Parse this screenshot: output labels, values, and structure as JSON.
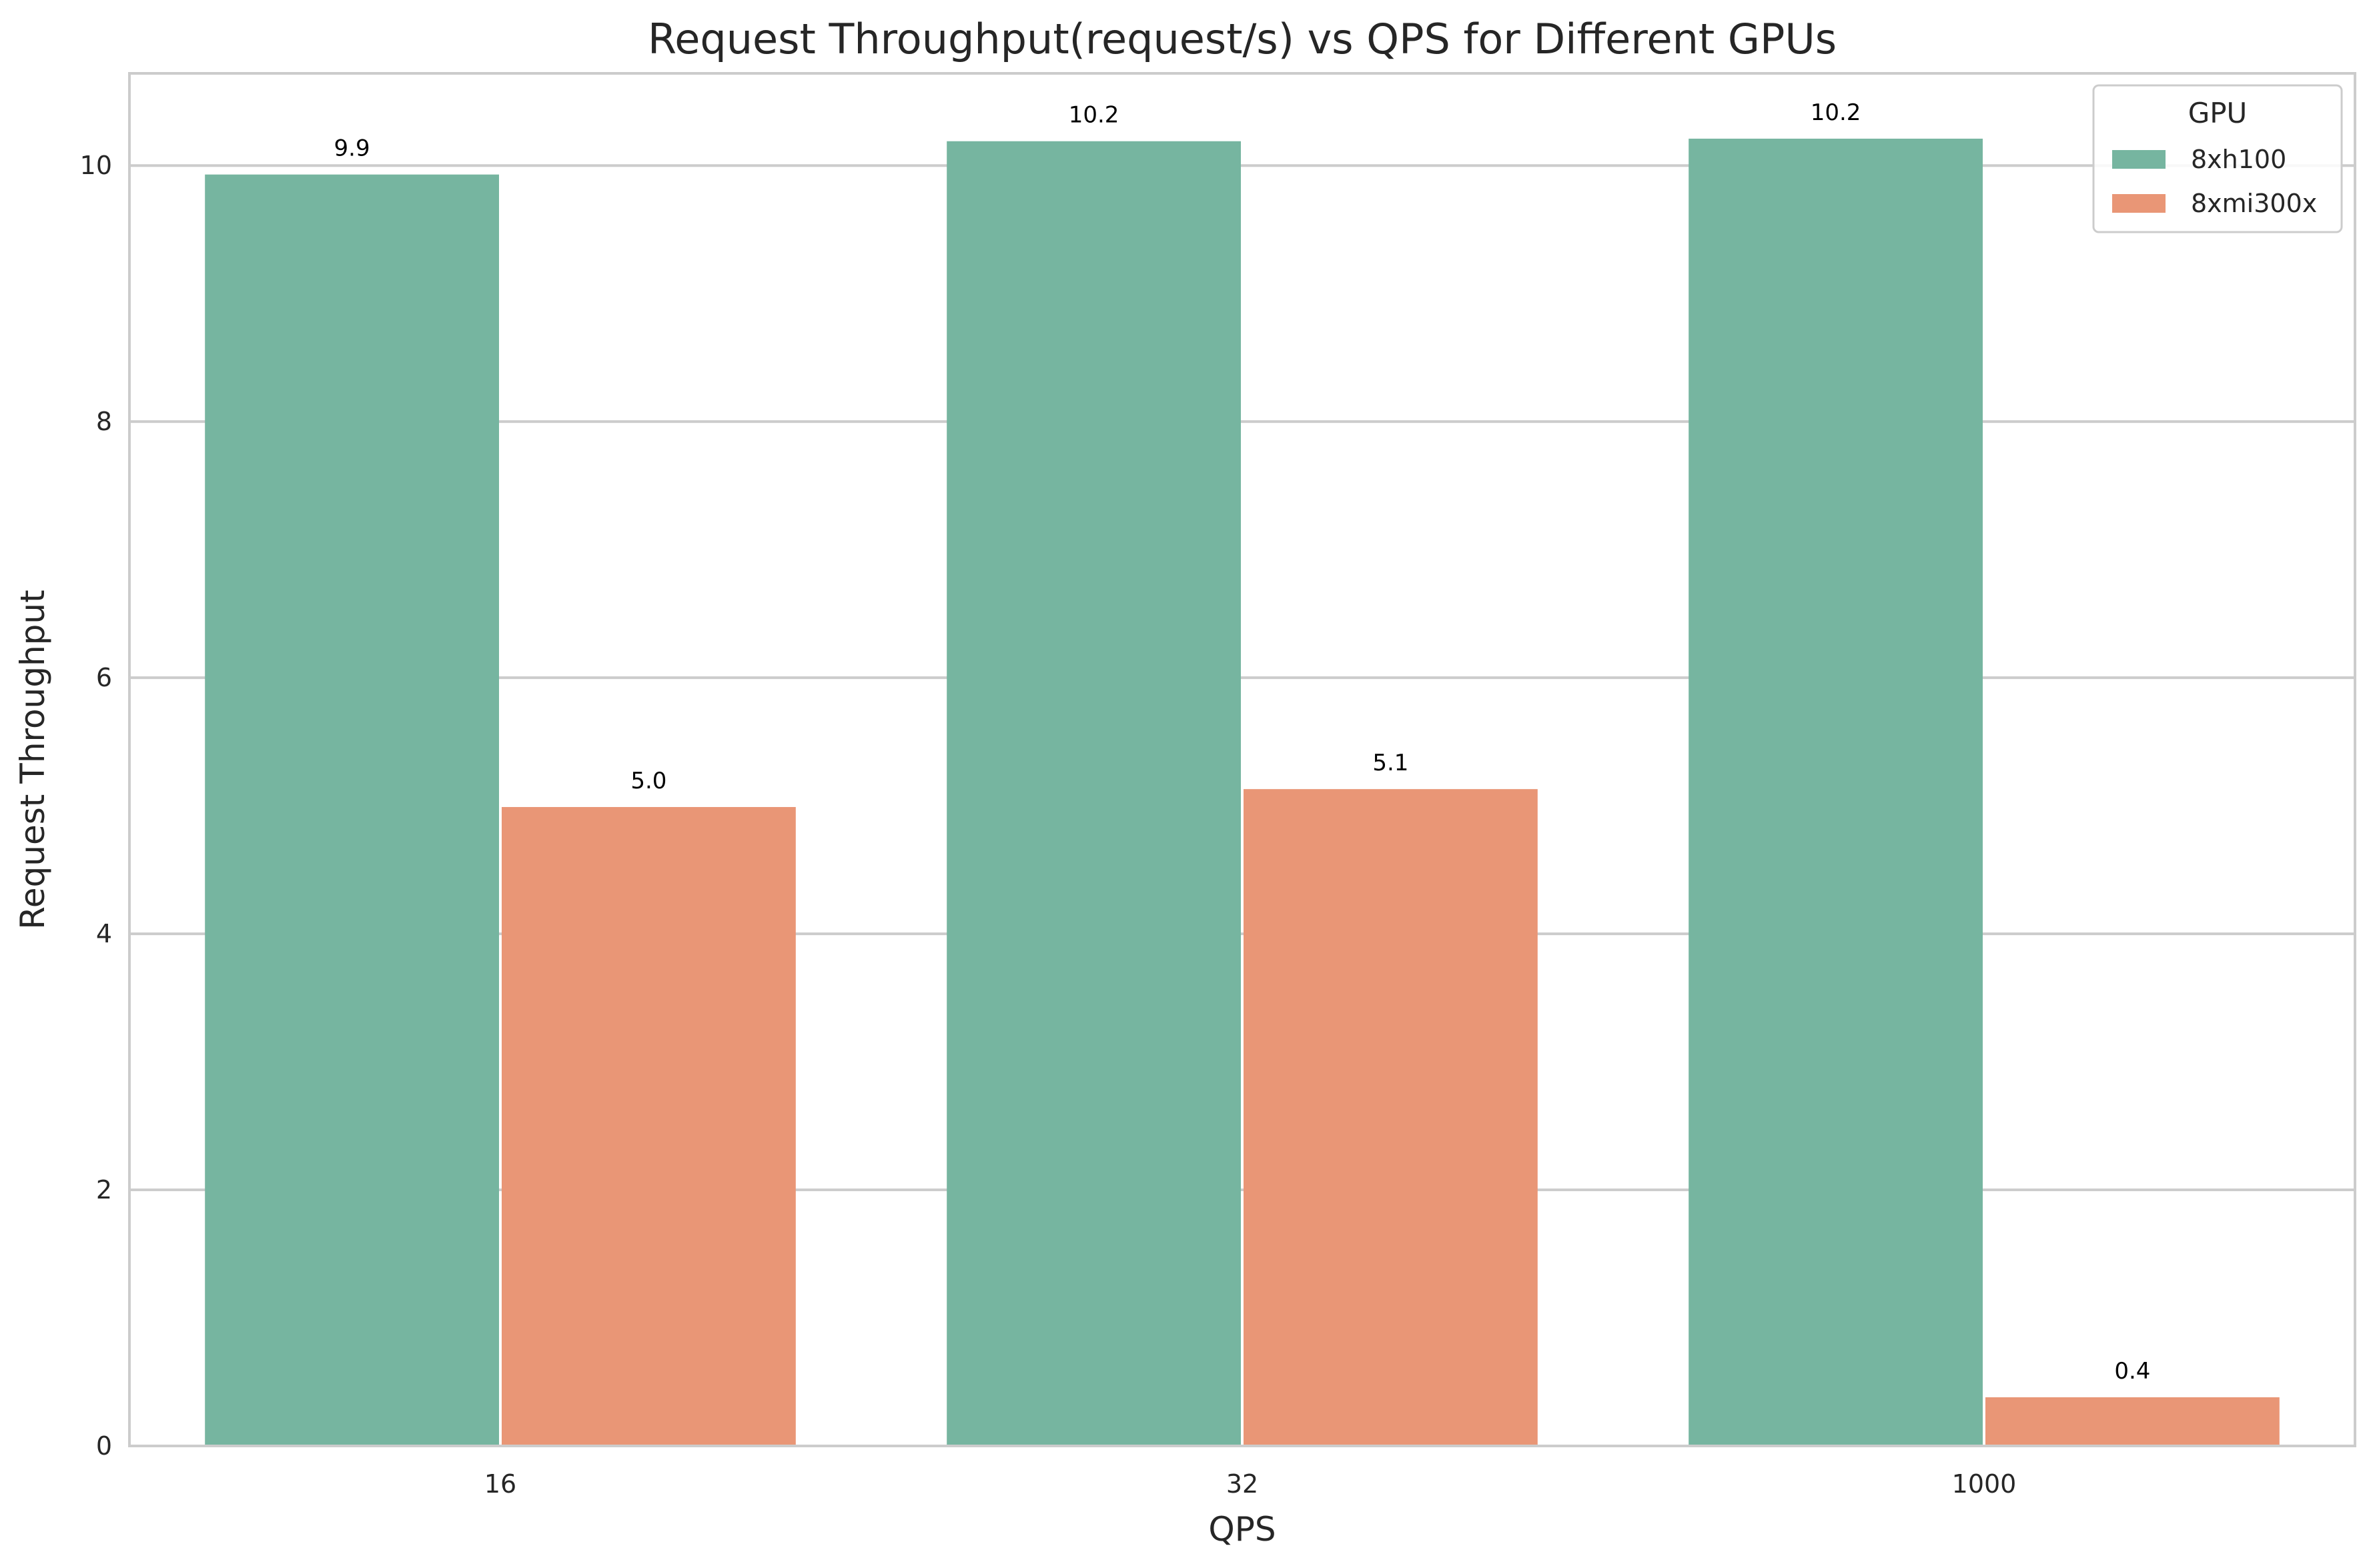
{
  "chart_data": {
    "type": "bar",
    "title": "Request Throughput(request/s) vs QPS for Different GPUs",
    "xlabel": "QPS",
    "ylabel": "Request Throughput",
    "categories": [
      "16",
      "32",
      "1000"
    ],
    "series": [
      {
        "name": "8xh100",
        "values": [
          9.93,
          10.19,
          10.21
        ],
        "labels": [
          "9.9",
          "10.2",
          "10.2"
        ],
        "color": "#76b5a0"
      },
      {
        "name": "8xmi300x",
        "values": [
          4.99,
          5.13,
          0.38
        ],
        "labels": [
          "5.0",
          "5.1",
          "0.4"
        ],
        "color": "#e99676"
      }
    ],
    "ylim": [
      0,
      10.72
    ],
    "yticks": [
      0,
      2,
      4,
      6,
      8,
      10
    ],
    "grid": true,
    "legend": {
      "title": "GPU",
      "placement": "top-right"
    }
  }
}
